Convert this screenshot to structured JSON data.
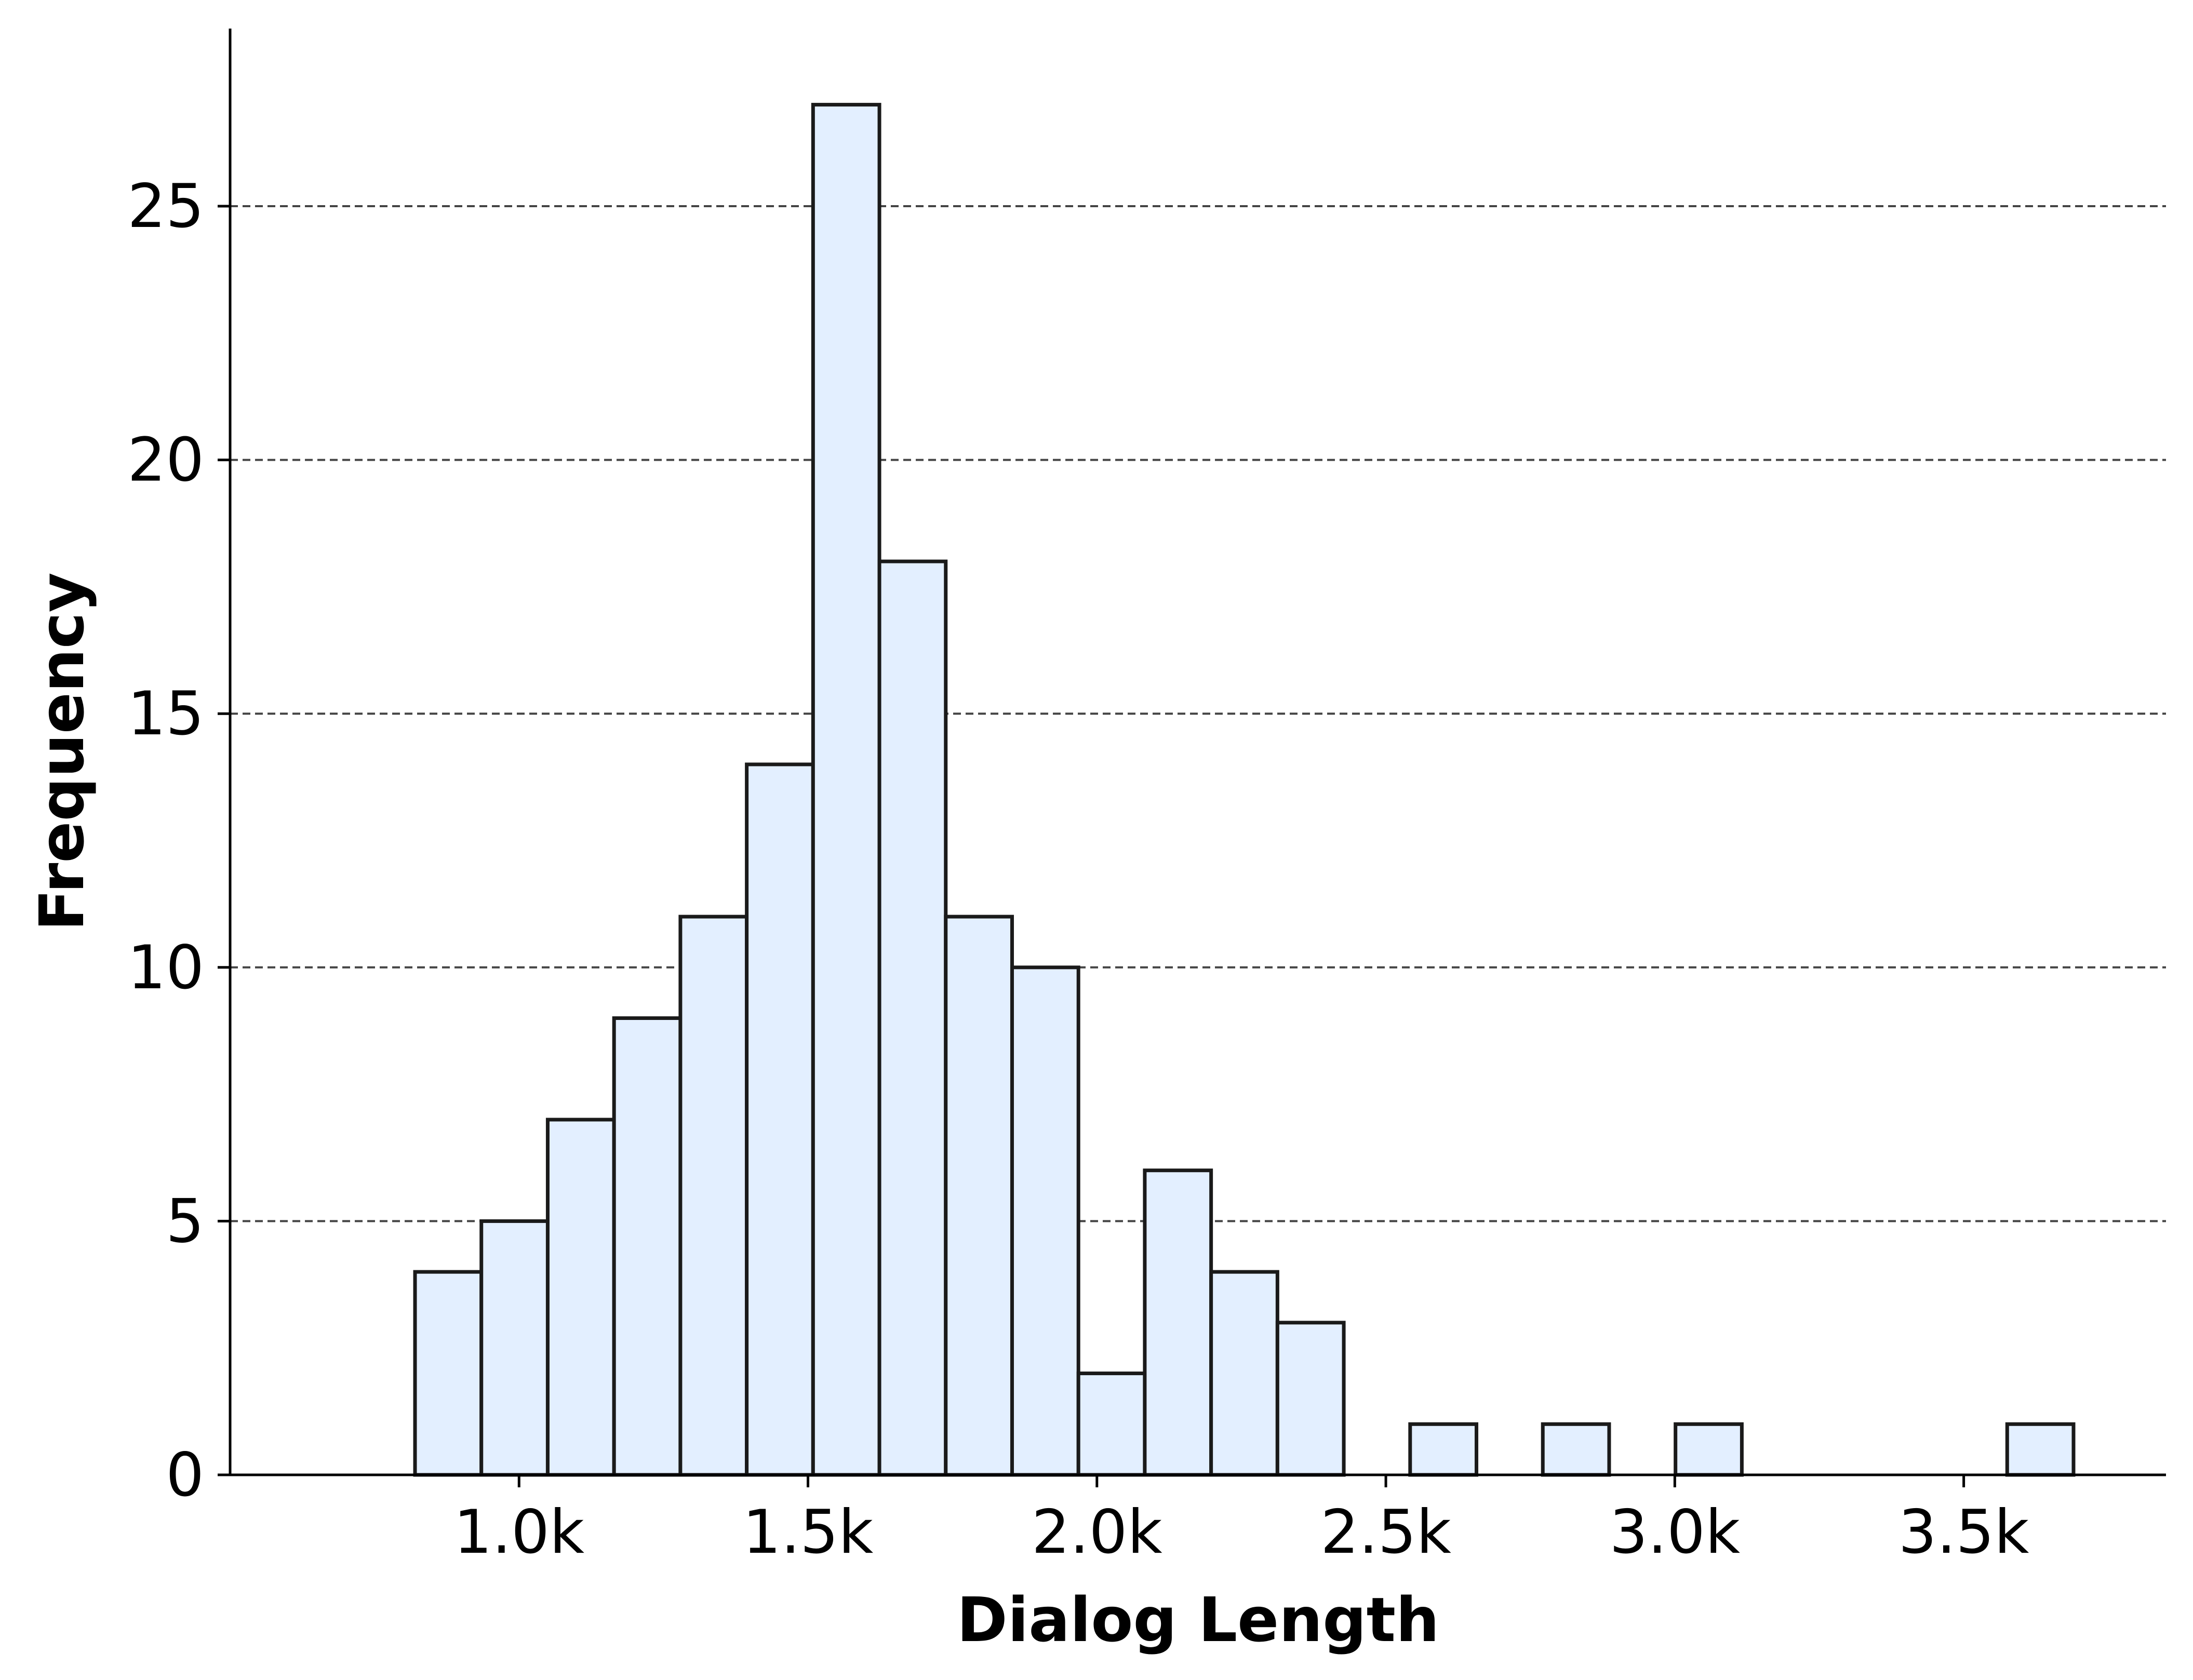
{
  "chart_data": {
    "type": "bar",
    "title": "",
    "xlabel": "Dialog Length",
    "ylabel": "Frequency",
    "bin_start": 820,
    "bin_width": 114.8,
    "values": [
      4,
      5,
      7,
      9,
      11,
      14,
      27,
      18,
      11,
      10,
      2,
      6,
      4,
      3,
      0,
      1,
      0,
      1,
      0,
      1,
      0,
      0,
      0,
      0,
      1
    ],
    "xlim": [
      500,
      3850
    ],
    "ylim": [
      0,
      28.5
    ],
    "x_ticks": [
      {
        "value": 1000,
        "label": "1.0k"
      },
      {
        "value": 1500,
        "label": "1.5k"
      },
      {
        "value": 2000,
        "label": "2.0k"
      },
      {
        "value": 2500,
        "label": "2.5k"
      },
      {
        "value": 3000,
        "label": "3.0k"
      },
      {
        "value": 3500,
        "label": "3.5k"
      }
    ],
    "y_ticks": [
      {
        "value": 0,
        "label": "0"
      },
      {
        "value": 5,
        "label": "5"
      },
      {
        "value": 10,
        "label": "10"
      },
      {
        "value": 15,
        "label": "15"
      },
      {
        "value": 20,
        "label": "20"
      },
      {
        "value": 25,
        "label": "25"
      }
    ],
    "grid": {
      "y": true,
      "style": "dashed"
    },
    "colors": {
      "bar_fill": "#e3efff",
      "bar_edge": "#1a1a1a",
      "grid": "#444444",
      "axis": "#000000"
    }
  }
}
